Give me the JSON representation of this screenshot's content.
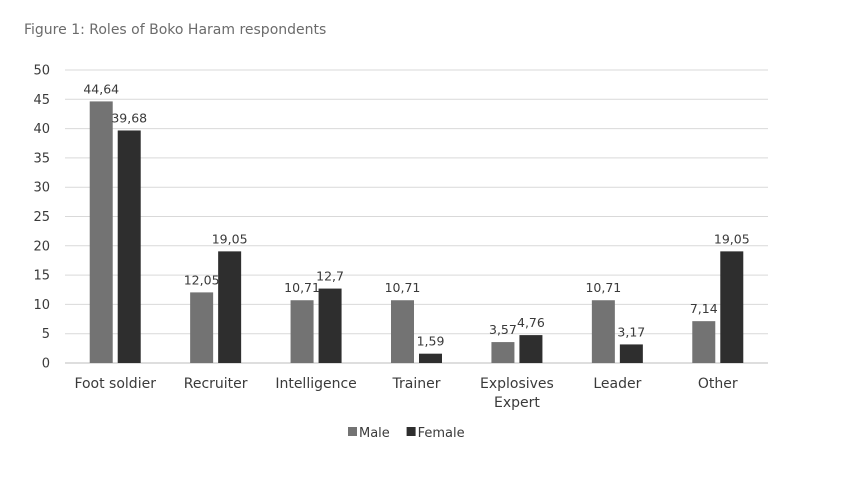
{
  "chart_data": {
    "type": "bar",
    "title": "Figure 1: Roles of Boko Haram respondents",
    "categories": [
      "Foot soldier",
      "Recruiter",
      "Intelligence",
      "Trainer",
      [
        "Explosives",
        "Expert"
      ],
      "Leader",
      "Other"
    ],
    "series": [
      {
        "name": "Male",
        "values": [
          44.64,
          12.05,
          10.71,
          10.71,
          3.57,
          10.71,
          7.14
        ],
        "labels": [
          "44,64",
          "12,05",
          "10,71",
          "10,71",
          "3,57",
          "10,71",
          "7,14"
        ],
        "color": "#737373"
      },
      {
        "name": "Female",
        "values": [
          39.68,
          19.05,
          12.7,
          1.59,
          4.76,
          3.17,
          19.05
        ],
        "labels": [
          "39,68",
          "19,05",
          "12,7",
          "1,59",
          "4,76",
          "3,17",
          "19,05"
        ],
        "color": "#2e2e2e"
      }
    ],
    "ylim": [
      0,
      50
    ],
    "yticks": [
      0,
      5,
      10,
      15,
      20,
      25,
      30,
      35,
      40,
      45,
      50
    ],
    "grid": true,
    "legend": "bottom-center"
  }
}
